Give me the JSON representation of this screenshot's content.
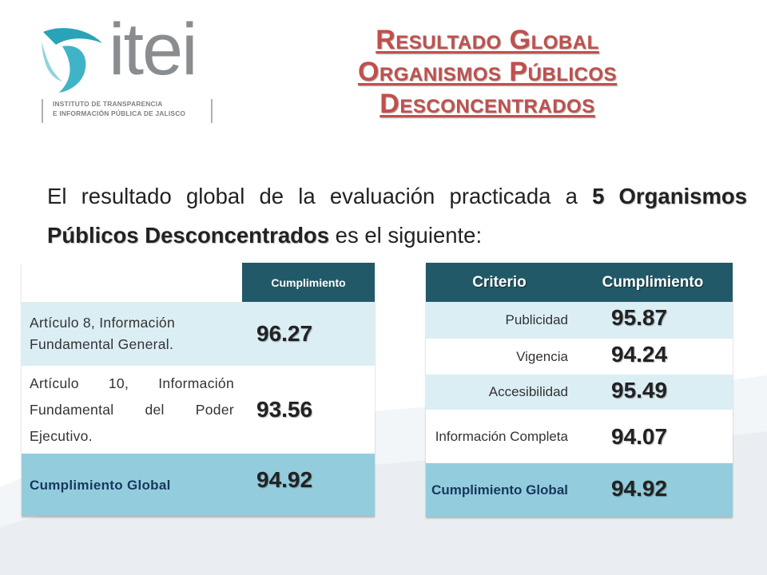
{
  "logo": {
    "wordmark": "itei",
    "caption_line1": "INSTITUTO DE TRANSPARENCIA",
    "caption_line2": "E INFORMACIÓN PÚBLICA DE JALISCO"
  },
  "title": {
    "line1": "Resultado Global",
    "line2": "Organismos Públicos",
    "line3": "Desconcentrados"
  },
  "intro": {
    "text_before": "El resultado global de la evaluación practicada a ",
    "bold": "5 Organismos Públicos Desconcentrados",
    "text_after": " es el siguiente:"
  },
  "table_left": {
    "header": "Cumplimiento",
    "rows": [
      {
        "label": "Artículo 8, Información Fundamental  General.",
        "value": "96.27"
      },
      {
        "label": "Artículo 10, Información Fundamental del Poder Ejecutivo.",
        "value": "93.56"
      },
      {
        "label": "Cumplimiento Global",
        "value": "94.92"
      }
    ]
  },
  "table_right": {
    "header_criterio": "Criterio",
    "header_cumplimiento": "Cumplimiento",
    "rows": [
      {
        "label": "Publicidad",
        "value": "95.87"
      },
      {
        "label": "Vigencia",
        "value": "94.24"
      },
      {
        "label": "Accesibilidad",
        "value": "95.49"
      },
      {
        "label": "Información Completa",
        "value": "94.07"
      },
      {
        "label": "Cumplimiento Global",
        "value": "94.92"
      }
    ]
  },
  "colors": {
    "title_red": "#c0504d",
    "header_teal": "#215968",
    "row_light": "#dbeef4",
    "row_total": "#93cddd",
    "logo_teal": "#2aa3b8"
  }
}
